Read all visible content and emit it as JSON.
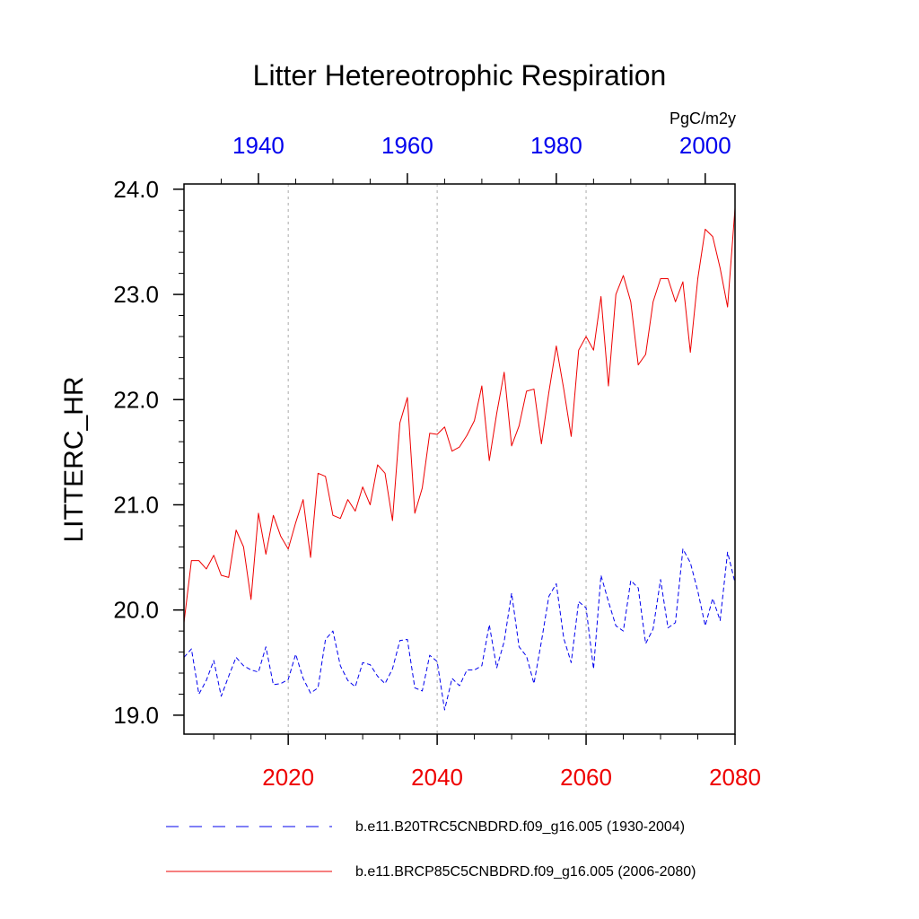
{
  "chart_data": {
    "type": "line",
    "title": "Litter Hetereotrophic Respiration",
    "ylabel": "LITTERC_HR",
    "units": "PgC/m2y",
    "ylim": [
      18.82,
      24.05
    ],
    "y_ticks": [
      19.0,
      20.0,
      21.0,
      22.0,
      23.0,
      24.0
    ],
    "y_tick_labels": [
      "19.0",
      "20.0",
      "21.0",
      "22.0",
      "23.0",
      "24.0"
    ],
    "bottom_axis": {
      "range": [
        2006,
        2080
      ],
      "ticks": [
        2020,
        2040,
        2060,
        2080
      ],
      "tick_labels": [
        "2020",
        "2040",
        "2060",
        "2080"
      ],
      "color": "#ee0000"
    },
    "top_axis": {
      "range": [
        1930,
        2004
      ],
      "ticks": [
        1940,
        1960,
        1980,
        2000
      ],
      "tick_labels": [
        "1940",
        "1960",
        "1980",
        "2000"
      ],
      "color": "#0000ee"
    },
    "grid_x": [
      2020,
      2040,
      2060
    ],
    "series": [
      {
        "name": "b.e11.B20TRC5CNBDRD.f09_g16.005 (1930-2004)",
        "axis": "top",
        "color": "#0000ee",
        "style": "dashed",
        "x_start": 1930,
        "values": [
          19.55,
          19.63,
          19.2,
          19.33,
          19.52,
          19.18,
          19.37,
          19.55,
          19.47,
          19.43,
          19.41,
          19.65,
          19.29,
          19.3,
          19.34,
          19.58,
          19.35,
          19.21,
          19.26,
          19.72,
          19.8,
          19.47,
          19.33,
          19.27,
          19.5,
          19.48,
          19.37,
          19.3,
          19.44,
          19.71,
          19.72,
          19.26,
          19.23,
          19.57,
          19.51,
          19.05,
          19.35,
          19.28,
          19.43,
          19.43,
          19.47,
          19.86,
          19.45,
          19.7,
          20.16,
          19.65,
          19.56,
          19.3,
          19.7,
          20.13,
          20.25,
          19.73,
          19.5,
          20.08,
          20.02,
          19.44,
          20.33,
          20.08,
          19.85,
          19.8,
          20.28,
          20.21,
          19.68,
          19.82,
          20.29,
          19.83,
          19.88,
          20.58,
          20.45,
          20.18,
          19.85,
          20.11,
          19.9,
          20.55,
          20.26
        ]
      },
      {
        "name": "b.e11.BRCP85C5CNBDRD.f09_g16.005 (2006-2080)",
        "axis": "bottom",
        "color": "#ee0000",
        "style": "solid",
        "x_start": 2006,
        "values": [
          19.88,
          20.47,
          20.47,
          20.39,
          20.52,
          20.33,
          20.31,
          20.76,
          20.6,
          20.1,
          20.92,
          20.53,
          20.9,
          20.7,
          20.58,
          20.83,
          21.05,
          20.5,
          21.3,
          21.27,
          20.9,
          20.87,
          21.05,
          20.94,
          21.17,
          21.0,
          21.38,
          21.3,
          20.85,
          21.78,
          22.02,
          20.92,
          21.16,
          21.68,
          21.67,
          21.74,
          21.51,
          21.55,
          21.66,
          21.8,
          22.13,
          21.42,
          21.87,
          22.26,
          21.56,
          21.75,
          22.08,
          22.1,
          21.58,
          22.07,
          22.51,
          22.1,
          21.65,
          22.47,
          22.6,
          22.47,
          22.98,
          22.13,
          23.0,
          23.18,
          22.93,
          22.33,
          22.43,
          22.93,
          23.15,
          23.15,
          22.93,
          23.12,
          22.45,
          23.15,
          23.62,
          23.55,
          23.25,
          22.88,
          23.82
        ]
      }
    ],
    "legend": {
      "placement": "bottom",
      "entries": [
        "b.e11.B20TRC5CNBDRD.f09_g16.005 (1930-2004)",
        "b.e11.BRCP85C5CNBDRD.f09_g16.005 (2006-2080)"
      ]
    }
  }
}
